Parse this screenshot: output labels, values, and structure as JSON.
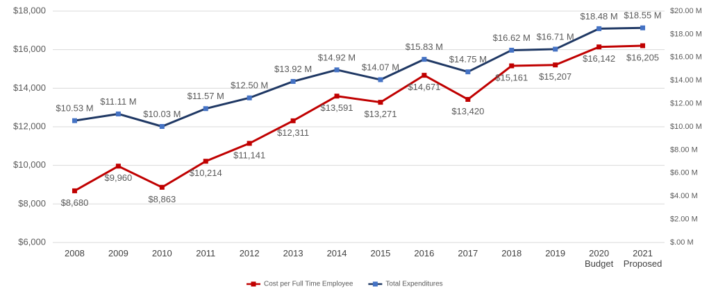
{
  "chart_data": {
    "type": "line",
    "categories": [
      "2008",
      "2009",
      "2010",
      "2011",
      "2012",
      "2013",
      "2014",
      "2015",
      "2016",
      "2017",
      "2018",
      "2019",
      "2020\nBudget",
      "2021\nProposed"
    ],
    "series": [
      {
        "name": "Cost per Full Time Employee",
        "color": "#c00000",
        "marker_color": "#c00000",
        "values": [
          8680,
          9960,
          8863,
          10214,
          11141,
          12311,
          13591,
          13271,
          14671,
          13420,
          15161,
          15207,
          16142,
          16205
        ],
        "value_labels": [
          "$8,680",
          "$9,960",
          "$8,863",
          "$10,214",
          "$11,141",
          "$12,311",
          "$13,591",
          "$13,271",
          "$14,671",
          "$13,420",
          "$15,161",
          "$15,207",
          "$16,142",
          "$16,205"
        ]
      },
      {
        "name": "Total Expenditures",
        "color": "#1f3864",
        "marker_color": "#4472c4",
        "axis": "y2",
        "values": [
          10.53,
          11.11,
          10.03,
          11.57,
          12.5,
          13.92,
          14.92,
          14.07,
          15.83,
          14.75,
          16.62,
          16.71,
          18.48,
          18.55
        ],
        "value_labels": [
          "$10.53 M",
          "$11.11 M",
          "$10.03 M",
          "$11.57 M",
          "$12.50 M",
          "$13.92 M",
          "$14.92 M",
          "$14.07 M",
          "$15.83 M",
          "$14.75 M",
          "$16.62 M",
          "$16.71 M",
          "$18.48 M",
          "$18.55 M"
        ]
      }
    ],
    "ylim": [
      6000,
      18000
    ],
    "yticks": [
      {
        "value": 6000,
        "label": "$6,000"
      },
      {
        "value": 8000,
        "label": "$8,000"
      },
      {
        "value": 10000,
        "label": "$10,000"
      },
      {
        "value": 12000,
        "label": "$12,000"
      },
      {
        "value": 14000,
        "label": "$14,000"
      },
      {
        "value": 16000,
        "label": "$16,000"
      },
      {
        "value": 18000,
        "label": "$18,000"
      }
    ],
    "y2lim": [
      0,
      20
    ],
    "y2ticks": [
      {
        "value": 0,
        "label": "$.00 M"
      },
      {
        "value": 2,
        "label": "$2.00 M"
      },
      {
        "value": 4,
        "label": "$4.00 M"
      },
      {
        "value": 6,
        "label": "$6.00 M"
      },
      {
        "value": 8,
        "label": "$8.00 M"
      },
      {
        "value": 10,
        "label": "$10.00 M"
      },
      {
        "value": 12,
        "label": "$12.00 M"
      },
      {
        "value": 14,
        "label": "$14.00 M"
      },
      {
        "value": 16,
        "label": "$16.00 M"
      },
      {
        "value": 18,
        "label": "$18.00 M"
      },
      {
        "value": 20,
        "label": "$20.00 M"
      }
    ],
    "grid": true,
    "legend": "bottom"
  }
}
